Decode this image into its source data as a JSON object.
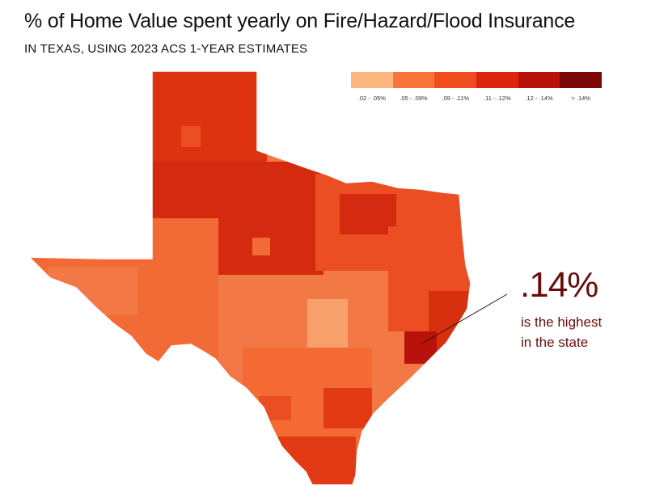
{
  "title": "% of Home Value spent yearly on Fire/Hazard/Flood Insurance",
  "subtitle": "IN TEXAS, USING 2023 ACS 1-YEAR ESTIMATES",
  "legend": {
    "items": [
      {
        "label": ".02 - .05%",
        "color": "#fbb77d"
      },
      {
        "label": ".05 - .09%",
        "color": "#f7753b"
      },
      {
        "label": ".09 - .11%",
        "color": "#ef4c1f"
      },
      {
        "label": ".11 - .12%",
        "color": "#da260f"
      },
      {
        "label": ".12 - .14%",
        "color": "#b8120a"
      },
      {
        "label": "> .14%",
        "color": "#7c0707"
      }
    ]
  },
  "callout": {
    "value": ".14%",
    "line1": "is the highest",
    "line2": "in the state",
    "color": "#6b0c0c"
  },
  "map_colors": {
    "panhandle": "#dd3311",
    "north_central": "#d42a0f",
    "west": "#f26a35",
    "central": "#f27846",
    "hill_country": "#f8a06a",
    "east": "#ea4e22",
    "gulf_coast": "#d6300f",
    "south": "#f46a34",
    "valley": "#e23a14",
    "dark": "#b8120a"
  }
}
